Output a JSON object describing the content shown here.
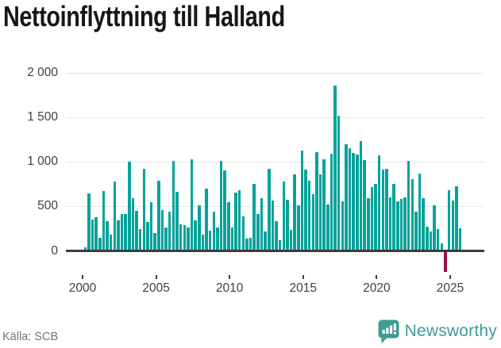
{
  "title": "Nettoinflyttning till Halland",
  "source": "Källa: SCB",
  "brand": {
    "name": "Newsworthy"
  },
  "colors": {
    "bar_positive": "#06a29a",
    "bar_negative": "#9b0f4e",
    "axis": "#3c3c3c",
    "grid": "#e7e7e7",
    "title_text": "#161616",
    "tick_text": "#3d4046",
    "source_text": "#71757d",
    "brand_teal": "#3e9b95"
  },
  "chart_data": {
    "type": "bar",
    "title": "Nettoinflyttning till Halland",
    "xlabel": "",
    "ylabel": "",
    "frequency": "quarterly",
    "start_label": "2000 Q1",
    "end_label": "2025 Q3",
    "ylim": [
      -300,
      2000
    ],
    "grid": true,
    "y_ticks": [
      {
        "value": 0,
        "label": "0"
      },
      {
        "value": 500,
        "label": "500"
      },
      {
        "value": 1000,
        "label": "1 000"
      },
      {
        "value": 1500,
        "label": "1 500"
      },
      {
        "value": 2000,
        "label": "2 000"
      }
    ],
    "x_ticks": [
      {
        "year": 2000,
        "label": "2000"
      },
      {
        "year": 2005,
        "label": "2005"
      },
      {
        "year": 2010,
        "label": "2010"
      },
      {
        "year": 2015,
        "label": "2015"
      },
      {
        "year": 2020,
        "label": "2020"
      },
      {
        "year": 2025,
        "label": "2025"
      }
    ],
    "negative_bar": {
      "index": 98,
      "value": -220
    },
    "values": [
      40,
      650,
      355,
      380,
      150,
      670,
      330,
      185,
      775,
      340,
      410,
      410,
      1005,
      590,
      450,
      245,
      920,
      325,
      545,
      200,
      790,
      460,
      265,
      445,
      1015,
      660,
      300,
      290,
      260,
      1030,
      345,
      510,
      180,
      695,
      230,
      445,
      260,
      1015,
      900,
      545,
      265,
      655,
      680,
      385,
      135,
      145,
      750,
      415,
      590,
      215,
      925,
      570,
      330,
      120,
      780,
      575,
      235,
      855,
      510,
      1130,
      915,
      790,
      635,
      1110,
      855,
      1025,
      525,
      1090,
      1860,
      1520,
      560,
      1195,
      1150,
      1100,
      1080,
      1230,
      1020,
      590,
      715,
      755,
      1070,
      915,
      925,
      600,
      750,
      560,
      580,
      605,
      1015,
      810,
      445,
      865,
      590,
      273,
      220,
      509,
      244,
      81,
      -220,
      680,
      567,
      725,
      253
    ]
  }
}
